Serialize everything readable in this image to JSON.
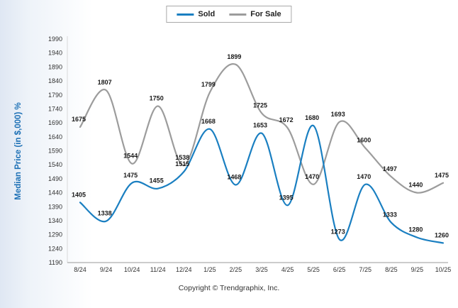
{
  "chart_data": {
    "type": "line",
    "title": "",
    "ylabel": "Median Price (in $,000) %",
    "xlabel": "",
    "footer": "Copyright © Trendgraphix, Inc.",
    "categories": [
      "8/24",
      "9/24",
      "10/24",
      "11/24",
      "12/24",
      "1/25",
      "2/25",
      "3/25",
      "4/25",
      "5/25",
      "6/25",
      "7/25",
      "8/25",
      "9/25",
      "10/25"
    ],
    "series": [
      {
        "name": "Sold",
        "color": "#1a7fc1",
        "values": [
          1405,
          1338,
          1475,
          1455,
          1515,
          1668,
          1468,
          1653,
          1395,
          1680,
          1273,
          1470,
          1333,
          1280,
          1260
        ]
      },
      {
        "name": "For Sale",
        "color": "#9c9c9c",
        "values": [
          1675,
          1807,
          1544,
          1750,
          1538,
          1799,
          1899,
          1725,
          1672,
          1470,
          1693,
          1600,
          1497,
          1440,
          1475
        ]
      }
    ],
    "ylim": [
      1190,
      1990
    ],
    "ytick_step": 50,
    "grid": false,
    "legend_position": "top",
    "smooth": true,
    "data_labels": true,
    "label_color": "#1a1a1a",
    "axis_color": "#999999",
    "tick_color": "#333333"
  }
}
